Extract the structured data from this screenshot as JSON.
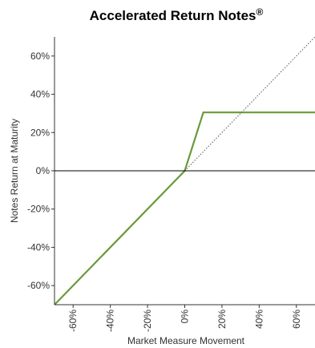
{
  "chart_data": {
    "type": "line",
    "title": "Accelerated Return Notes",
    "title_superscript": "®",
    "xlabel": "Market Measure Movement",
    "ylabel": "Notes Return at Maturity",
    "xlim": [
      -70,
      70
    ],
    "ylim": [
      -70,
      70
    ],
    "x_ticks": [
      -60,
      -40,
      -20,
      0,
      20,
      40,
      60
    ],
    "x_tick_labels": [
      "-60%",
      "-40%",
      "-20%",
      "0%",
      "20%",
      "40%",
      "60%"
    ],
    "y_ticks": [
      60,
      40,
      20,
      0,
      -20,
      -40,
      -60
    ],
    "y_tick_labels": [
      "60%",
      "40%",
      "20%",
      "0%",
      "-20%",
      "-40%",
      "-60%"
    ],
    "grid": false,
    "reference_line_y": 0,
    "series": [
      {
        "style": "solid",
        "color": "#6a9a3a",
        "x": [
          -70,
          0,
          10,
          70
        ],
        "y": [
          -70,
          0,
          30.5,
          30.5
        ]
      },
      {
        "style": "dotted",
        "color": "#555555",
        "x": [
          0,
          70
        ],
        "y": [
          0,
          70
        ]
      }
    ]
  }
}
